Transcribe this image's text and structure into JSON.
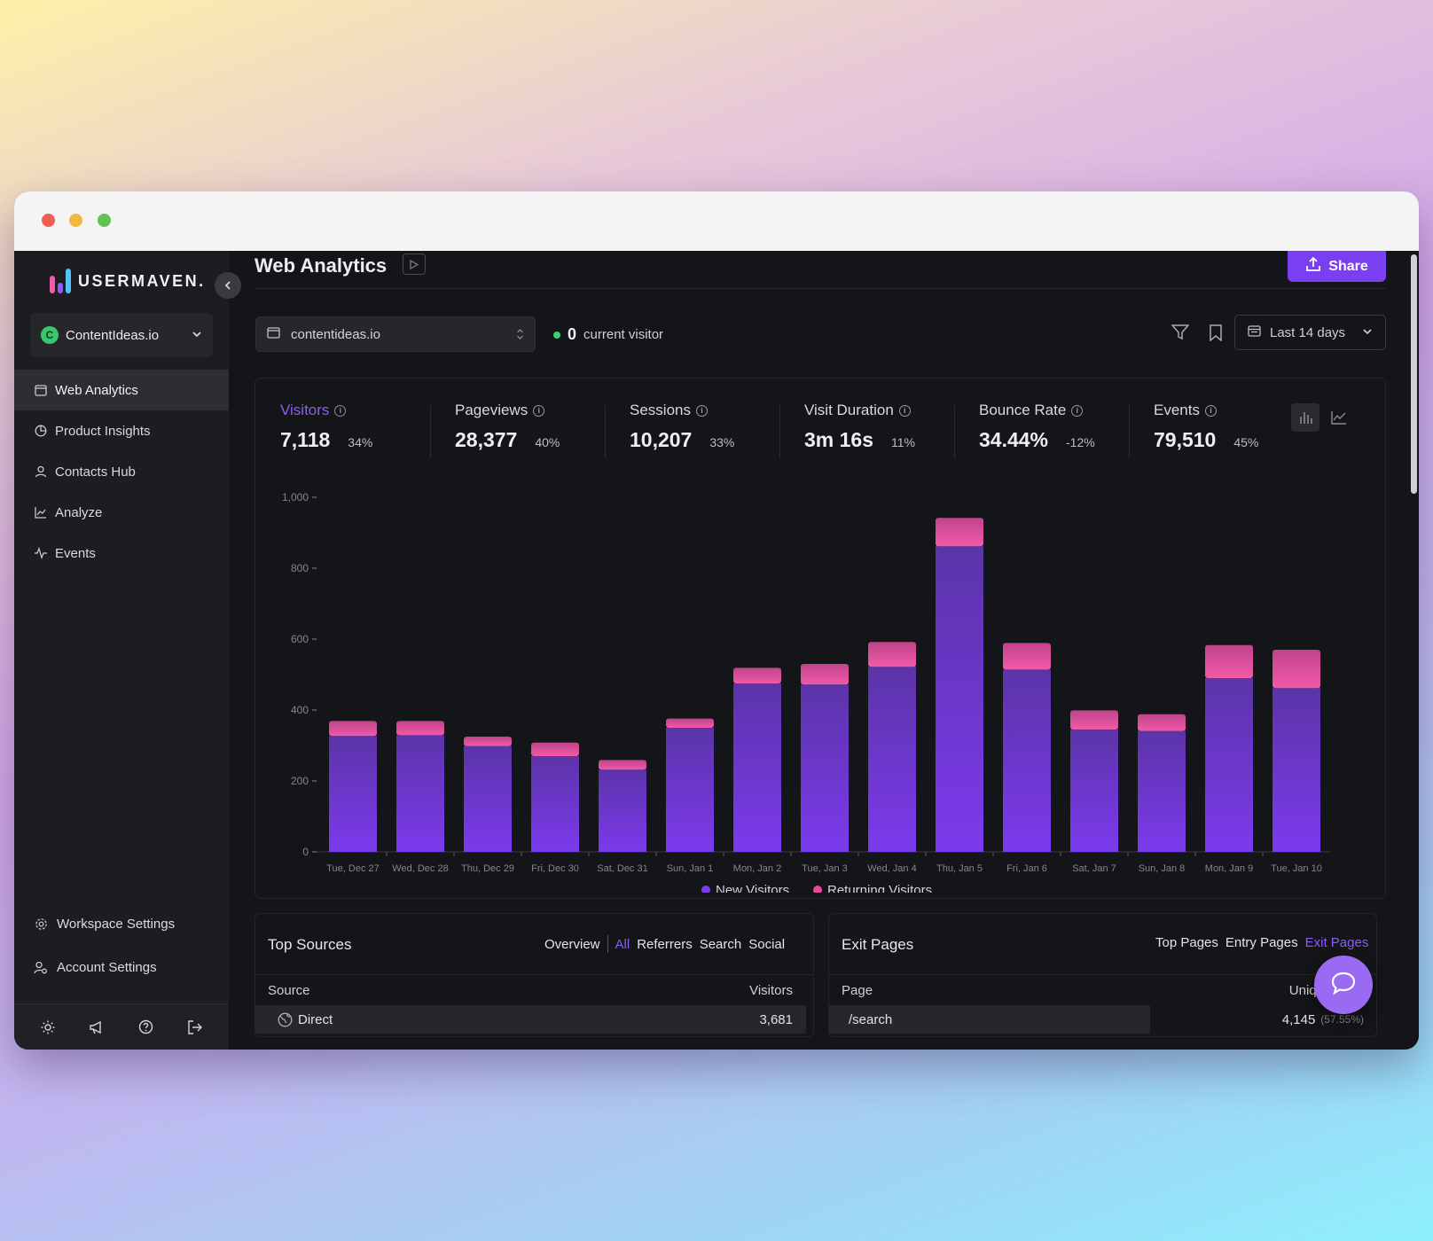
{
  "app": {
    "brand": "USERMAVEN.",
    "workspace": "ContentIdeas.io",
    "workspace_initial": "C"
  },
  "sidebar": {
    "items": [
      {
        "label": "Web Analytics",
        "icon": "calendar-icon",
        "active": true
      },
      {
        "label": "Product Insights",
        "icon": "pie-chart-icon",
        "active": false
      },
      {
        "label": "Contacts Hub",
        "icon": "user-icon",
        "active": false
      },
      {
        "label": "Analyze",
        "icon": "area-chart-icon",
        "active": false
      },
      {
        "label": "Events",
        "icon": "activity-icon",
        "active": false
      }
    ],
    "workspace_settings": "Workspace Settings",
    "account_settings": "Account Settings",
    "footer_icons": [
      "sun-icon",
      "megaphone-icon",
      "help-icon",
      "logout-icon"
    ]
  },
  "header": {
    "title": "Web Analytics",
    "share_label": "Share",
    "domain": "contentideas.io",
    "current_visitors": "0",
    "current_visitors_label": "current visitor",
    "date_range": "Last 14 days"
  },
  "kpis": [
    {
      "label": "Visitors",
      "value": "7,118",
      "change": "34%",
      "active": true
    },
    {
      "label": "Pageviews",
      "value": "28,377",
      "change": "40%",
      "active": false
    },
    {
      "label": "Sessions",
      "value": "10,207",
      "change": "33%",
      "active": false
    },
    {
      "label": "Visit Duration",
      "value": "3m 16s",
      "change": "11%",
      "active": false
    },
    {
      "label": "Bounce Rate",
      "value": "34.44%",
      "change": "-12%",
      "active": false
    },
    {
      "label": "Events",
      "value": "79,510",
      "change": "45%",
      "active": false
    }
  ],
  "chart_data": {
    "type": "bar",
    "stacked": true,
    "categories": [
      "Tue, Dec 27",
      "Wed, Dec 28",
      "Thu, Dec 29",
      "Fri, Dec 30",
      "Sat, Dec 31",
      "Sun, Jan 1",
      "Mon, Jan 2",
      "Tue, Jan 3",
      "Wed, Jan 4",
      "Thu, Jan 5",
      "Fri, Jan 6",
      "Sat, Jan 7",
      "Sun, Jan 8",
      "Mon, Jan 9",
      "Tue, Jan 10"
    ],
    "series": [
      {
        "name": "New Visitors",
        "color": "#7c3aed",
        "values": [
          327,
          329,
          298,
          270,
          232,
          350,
          475,
          472,
          522,
          862,
          514,
          345,
          341,
          490,
          462
        ]
      },
      {
        "name": "Returning Visitors",
        "color": "#ec4899",
        "values": [
          42,
          40,
          27,
          38,
          27,
          26,
          44,
          58,
          70,
          80,
          75,
          54,
          47,
          93,
          108
        ]
      }
    ],
    "yticks": [
      0,
      200,
      400,
      600,
      800,
      "1,000"
    ],
    "ylim": [
      0,
      1000
    ],
    "legend_position": "bottom-center"
  },
  "top_sources": {
    "title": "Top Sources",
    "tabs": [
      "Overview",
      "All",
      "Referrers",
      "Search",
      "Social"
    ],
    "selected_tab": "All",
    "col_source": "Source",
    "col_visitors": "Visitors",
    "rows": [
      {
        "source": "Direct",
        "visitors": "3,681"
      }
    ]
  },
  "exit_pages": {
    "title": "Exit Pages",
    "tabs": [
      "Top Pages",
      "Entry Pages",
      "Exit Pages"
    ],
    "selected_tab": "Exit Pages",
    "col_page": "Page",
    "col_unique": "Unique Exits",
    "rows": [
      {
        "page": "/search",
        "value": "4,145",
        "percent": "(57.55%)"
      }
    ]
  },
  "colors": {
    "accent": "#7b3ff2",
    "new_visitors": "#7c3aed",
    "returning_visitors": "#ec4899",
    "online": "#3bd26e"
  }
}
